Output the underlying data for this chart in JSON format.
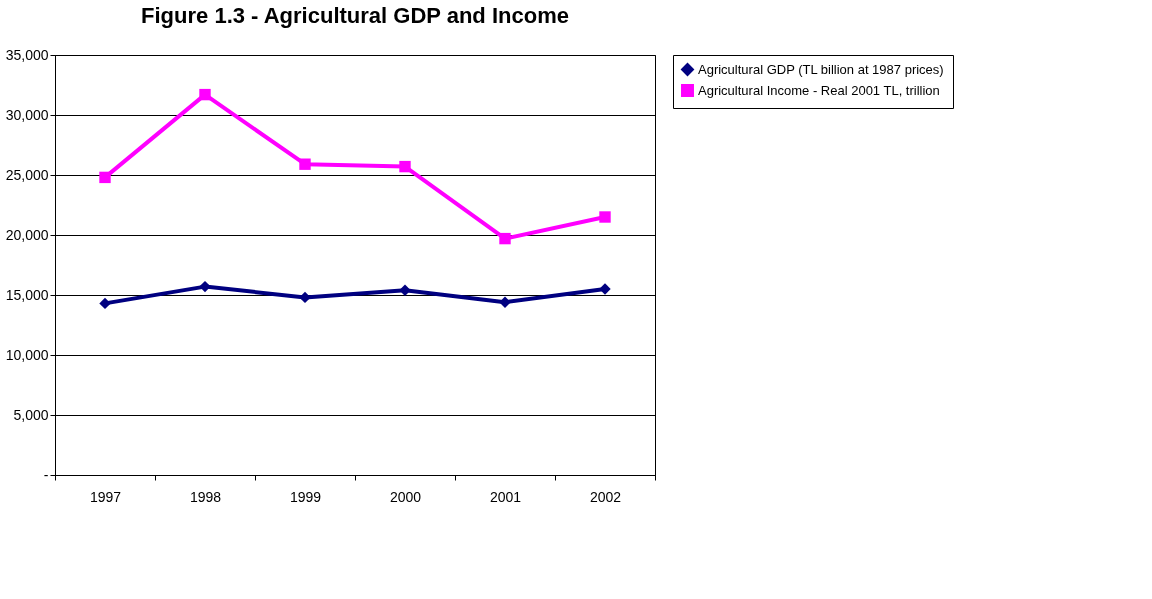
{
  "chart_data": {
    "type": "line",
    "title": "Figure 1.3 - Agricultural GDP and Income",
    "categories": [
      "1997",
      "1998",
      "1999",
      "2000",
      "2001",
      "2002"
    ],
    "series": [
      {
        "name": "Agricultural GDP (TL billion at 1987 prices)",
        "color": "#000080",
        "marker": "diamond",
        "values": [
          14300,
          15700,
          14800,
          15400,
          14400,
          15500
        ]
      },
      {
        "name": "Agricultural Income - Real 2001 TL, trillion",
        "color": "#ff00ff",
        "marker": "square",
        "values": [
          24800,
          31700,
          25900,
          25700,
          19700,
          21500
        ]
      }
    ],
    "ylim": [
      0,
      35000
    ],
    "yticks": [
      {
        "value": 0,
        "label": "-"
      },
      {
        "value": 5000,
        "label": "5,000"
      },
      {
        "value": 10000,
        "label": "10,000"
      },
      {
        "value": 15000,
        "label": "15,000"
      },
      {
        "value": 20000,
        "label": "20,000"
      },
      {
        "value": 25000,
        "label": "25,000"
      },
      {
        "value": 30000,
        "label": "30,000"
      },
      {
        "value": 35000,
        "label": "35,000"
      }
    ],
    "grid": "y",
    "legend": "right",
    "line_style": "solid"
  }
}
